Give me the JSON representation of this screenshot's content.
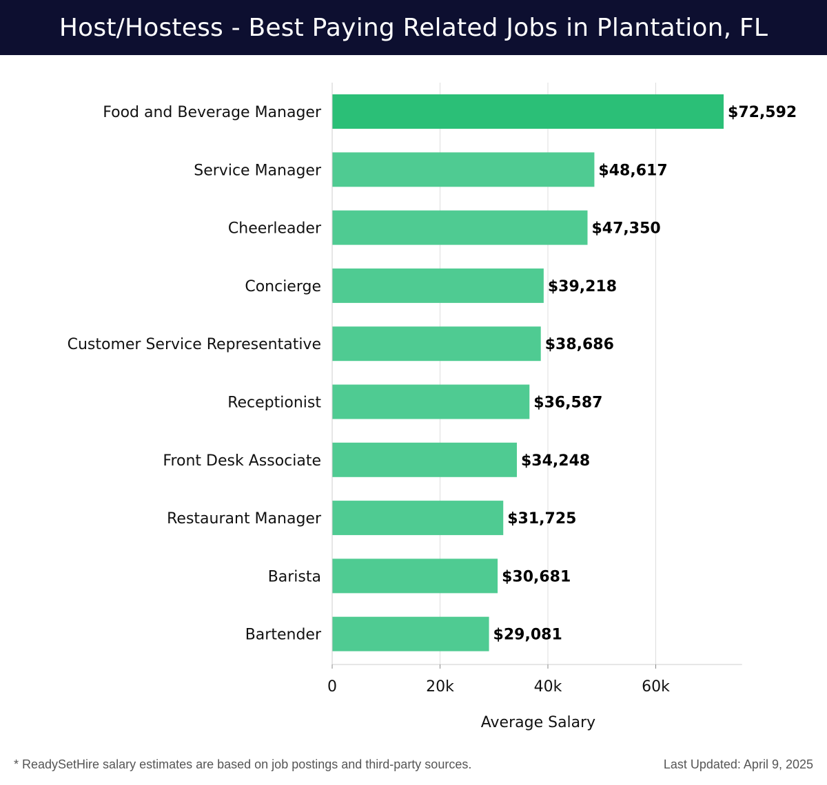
{
  "header": {
    "title": "Host/Hostess - Best Paying Related Jobs in Plantation, FL"
  },
  "chart_data": {
    "type": "bar",
    "orientation": "horizontal",
    "title": "Host/Hostess - Best Paying Related Jobs in Plantation, FL",
    "xlabel": "Average Salary",
    "ylabel": "",
    "xlim": [
      0,
      76000
    ],
    "xticks": [
      0,
      20000,
      40000,
      60000
    ],
    "xtick_labels": [
      "0",
      "20k",
      "40k",
      "60k"
    ],
    "grid": true,
    "categories": [
      "Food and Beverage Manager",
      "Service Manager",
      "Cheerleader",
      "Concierge",
      "Customer Service Representative",
      "Receptionist",
      "Front Desk Associate",
      "Restaurant Manager",
      "Barista",
      "Bartender"
    ],
    "values": [
      72592,
      48617,
      47350,
      39218,
      38686,
      36587,
      34248,
      31725,
      30681,
      29081
    ],
    "value_labels": [
      "$72,592",
      "$48,617",
      "$47,350",
      "$39,218",
      "$38,686",
      "$36,587",
      "$34,248",
      "$31,725",
      "$30,681",
      "$29,081"
    ],
    "colors": {
      "bar_top": "#2bbf77",
      "bar": "#4fcb92",
      "grid": "#dddddd",
      "axis": "#cccccc",
      "text": "#111111"
    }
  },
  "footer": {
    "note": "* ReadySetHire salary estimates are based on job postings and third-party sources.",
    "updated": "Last Updated: April 9, 2025"
  }
}
